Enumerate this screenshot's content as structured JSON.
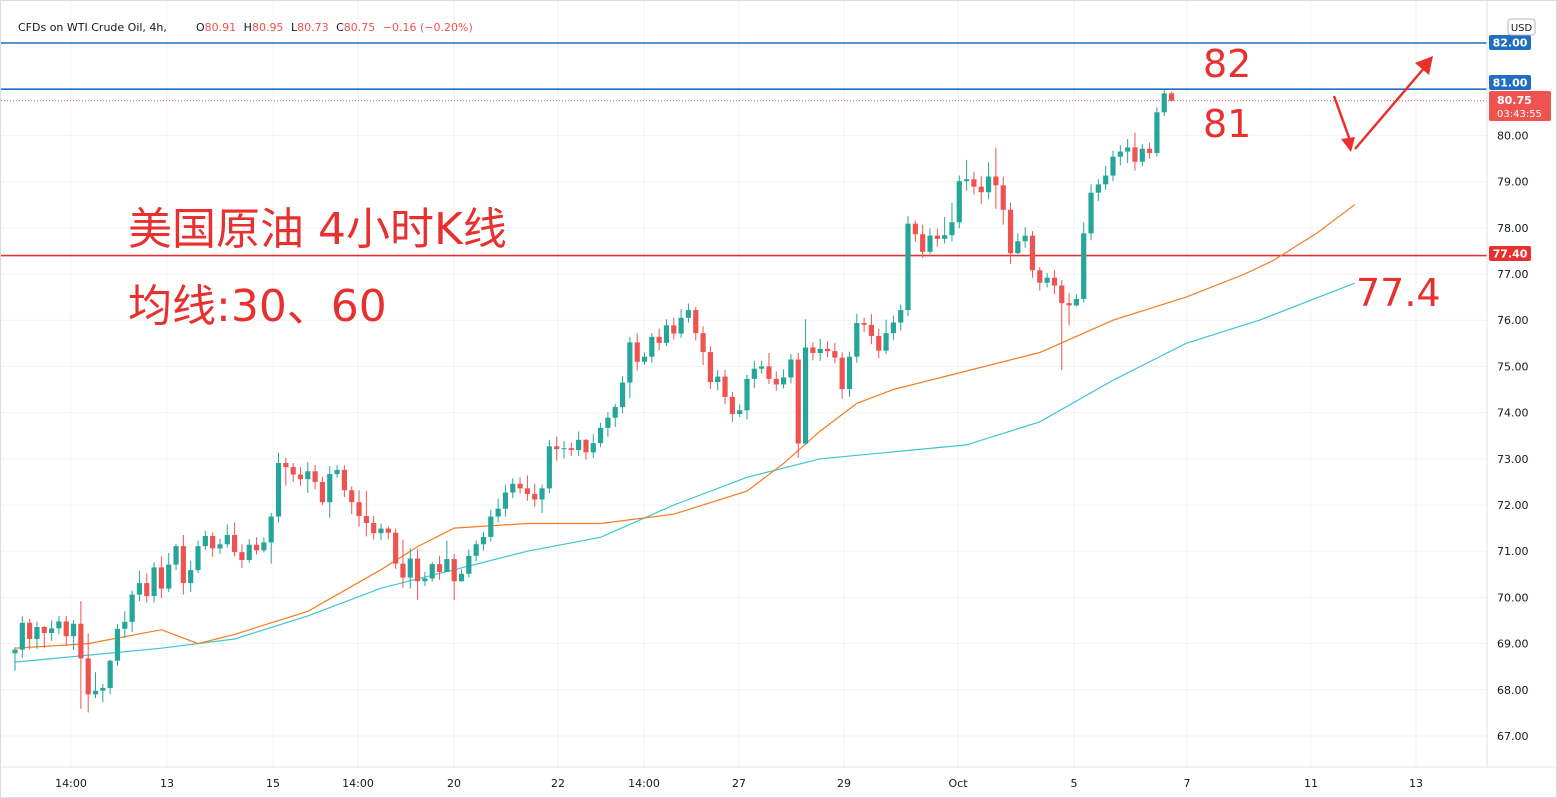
{
  "header": {
    "symbol": "CFDs on WTI Crude Oil, 4h,",
    "o_label": "O",
    "o_value": "80.91",
    "h_label": "H",
    "h_value": "80.95",
    "l_label": "L",
    "l_value": "80.73",
    "c_label": "C",
    "c_value": "80.75",
    "change": "−0.16 (−0.20%)"
  },
  "currency": "USD",
  "annotations": {
    "title_line1": "美国原油 4小时K线",
    "title_line2": "均线:30、60",
    "level_82": "82",
    "level_81": "81",
    "level_774": "77.4"
  },
  "price_tags": {
    "top": "82.00",
    "mid": "81.00",
    "current": "80.75",
    "countdown": "03:43:55",
    "support": "77.40"
  },
  "colors": {
    "up": "#26a69a",
    "down": "#ef5350",
    "ma30": "#f57c20",
    "ma60": "#3fc4d8",
    "resistance": "#1e6fc2",
    "support": "#e8302e",
    "annotation": "#e8302e"
  },
  "chart_data": {
    "type": "candlestick",
    "timeframe": "4h",
    "ylim": [
      66.3,
      82.6
    ],
    "y_ticks": [
      "67.00",
      "68.00",
      "69.00",
      "70.00",
      "71.00",
      "72.00",
      "73.00",
      "74.00",
      "75.00",
      "76.00",
      "77.00",
      "78.00",
      "79.00",
      "80.00"
    ],
    "x_ticks": [
      "14:00",
      "13",
      "15",
      "14:00",
      "20",
      "22",
      "14:00",
      "27",
      "29",
      "Oct",
      "5",
      "7",
      "11",
      "13"
    ],
    "horizontal_lines": [
      {
        "price": 82.0,
        "color": "#1e6fc2"
      },
      {
        "price": 81.0,
        "color": "#1e6fc2"
      },
      {
        "price": 77.4,
        "color": "#e8302e"
      }
    ],
    "moving_averages": [
      {
        "period": 30,
        "points": [
          [
            0,
            68.9
          ],
          [
            10,
            69.0
          ],
          [
            20,
            69.3
          ],
          [
            25,
            69.0
          ],
          [
            30,
            69.2
          ],
          [
            40,
            69.7
          ],
          [
            50,
            70.6
          ],
          [
            55,
            71.1
          ],
          [
            60,
            71.5
          ],
          [
            70,
            71.6
          ],
          [
            80,
            71.6
          ],
          [
            90,
            71.8
          ],
          [
            100,
            72.3
          ],
          [
            105,
            72.9
          ],
          [
            110,
            73.6
          ],
          [
            115,
            74.2
          ],
          [
            120,
            74.5
          ],
          [
            130,
            74.9
          ],
          [
            140,
            75.3
          ],
          [
            150,
            76.0
          ],
          [
            160,
            76.5
          ],
          [
            168,
            77.0
          ],
          [
            172,
            77.3
          ],
          [
            178,
            77.9
          ],
          [
            183,
            78.5
          ]
        ]
      },
      {
        "period": 60,
        "points": [
          [
            0,
            68.6
          ],
          [
            20,
            68.9
          ],
          [
            30,
            69.1
          ],
          [
            40,
            69.6
          ],
          [
            50,
            70.2
          ],
          [
            60,
            70.6
          ],
          [
            70,
            71.0
          ],
          [
            80,
            71.3
          ],
          [
            90,
            72.0
          ],
          [
            100,
            72.6
          ],
          [
            110,
            73.0
          ],
          [
            130,
            73.3
          ],
          [
            140,
            73.8
          ],
          [
            150,
            74.7
          ],
          [
            160,
            75.5
          ],
          [
            170,
            76.0
          ],
          [
            183,
            76.8
          ]
        ]
      }
    ],
    "candles": [
      [
        68.79,
        68.87,
        68.41,
        68.92
      ],
      [
        68.87,
        69.45,
        68.69,
        69.59
      ],
      [
        69.45,
        69.1,
        68.87,
        69.53
      ],
      [
        69.1,
        69.36,
        68.89,
        69.48
      ],
      [
        69.36,
        69.23,
        68.9,
        69.38
      ],
      [
        69.23,
        69.33,
        69.06,
        69.5
      ],
      [
        69.33,
        69.48,
        69.2,
        69.6
      ],
      [
        69.48,
        69.16,
        68.95,
        69.6
      ],
      [
        69.16,
        69.43,
        68.86,
        69.51
      ],
      [
        69.43,
        68.68,
        67.59,
        69.92
      ],
      [
        68.68,
        67.9,
        67.51,
        69.22
      ],
      [
        67.9,
        67.98,
        67.82,
        68.38
      ],
      [
        67.98,
        68.04,
        67.73,
        68.13
      ],
      [
        68.04,
        68.63,
        67.9,
        68.65
      ],
      [
        68.63,
        69.32,
        68.52,
        69.42
      ],
      [
        69.32,
        69.47,
        69.12,
        69.7
      ],
      [
        69.47,
        70.06,
        69.25,
        70.15
      ],
      [
        70.06,
        70.31,
        69.92,
        70.58
      ],
      [
        70.31,
        70.03,
        69.89,
        70.52
      ],
      [
        70.03,
        70.65,
        69.89,
        70.76
      ],
      [
        70.65,
        70.19,
        69.98,
        70.89
      ],
      [
        70.19,
        70.71,
        70.12,
        70.96
      ],
      [
        70.71,
        71.11,
        70.59,
        71.16
      ],
      [
        71.11,
        70.31,
        70.06,
        71.35
      ],
      [
        70.31,
        70.59,
        70.12,
        70.8
      ],
      [
        70.59,
        71.11,
        70.53,
        71.23
      ],
      [
        71.11,
        71.33,
        71.03,
        71.44
      ],
      [
        71.33,
        71.06,
        70.88,
        71.41
      ],
      [
        71.06,
        71.15,
        70.94,
        71.27
      ],
      [
        71.15,
        71.35,
        71.08,
        71.58
      ],
      [
        71.35,
        70.98,
        70.89,
        71.62
      ],
      [
        70.98,
        70.81,
        70.64,
        71.15
      ],
      [
        70.81,
        71.14,
        70.75,
        71.26
      ],
      [
        71.14,
        71.02,
        70.93,
        71.3
      ],
      [
        71.02,
        71.19,
        70.97,
        71.3
      ],
      [
        71.19,
        71.75,
        70.73,
        71.83
      ],
      [
        71.75,
        72.91,
        71.62,
        73.13
      ],
      [
        72.91,
        72.82,
        72.42,
        73.02
      ],
      [
        72.82,
        72.66,
        72.5,
        72.91
      ],
      [
        72.66,
        72.56,
        72.42,
        72.82
      ],
      [
        72.56,
        72.73,
        72.26,
        72.93
      ],
      [
        72.73,
        72.5,
        72.34,
        72.87
      ],
      [
        72.5,
        72.06,
        72.0,
        72.61
      ],
      [
        72.06,
        72.67,
        71.72,
        72.84
      ],
      [
        72.67,
        72.76,
        72.59,
        72.86
      ],
      [
        72.76,
        72.32,
        72.17,
        72.86
      ],
      [
        72.32,
        72.06,
        71.8,
        72.4
      ],
      [
        72.06,
        71.76,
        71.53,
        72.32
      ],
      [
        71.76,
        71.61,
        71.32,
        72.3
      ],
      [
        71.61,
        71.39,
        71.25,
        71.76
      ],
      [
        71.39,
        71.49,
        71.24,
        71.6
      ],
      [
        71.49,
        71.4,
        71.26,
        71.54
      ],
      [
        71.4,
        70.73,
        70.62,
        71.49
      ],
      [
        70.73,
        70.43,
        70.21,
        71.25
      ],
      [
        70.43,
        70.84,
        70.19,
        71.06
      ],
      [
        70.84,
        70.35,
        69.95,
        71.05
      ],
      [
        70.35,
        70.41,
        70.25,
        70.55
      ],
      [
        70.41,
        70.72,
        70.34,
        70.77
      ],
      [
        70.72,
        70.55,
        70.38,
        70.9
      ],
      [
        70.55,
        70.83,
        70.55,
        71.23
      ],
      [
        70.83,
        70.35,
        69.94,
        70.94
      ],
      [
        70.35,
        70.51,
        70.34,
        70.61
      ],
      [
        70.51,
        70.9,
        70.43,
        71.04
      ],
      [
        70.9,
        71.15,
        70.78,
        71.23
      ],
      [
        71.15,
        71.31,
        71.01,
        71.42
      ],
      [
        71.31,
        71.75,
        71.21,
        71.9
      ],
      [
        71.75,
        71.92,
        71.62,
        72.14
      ],
      [
        71.92,
        72.27,
        71.75,
        72.44
      ],
      [
        72.27,
        72.46,
        72.15,
        72.58
      ],
      [
        72.46,
        72.36,
        72.25,
        72.6
      ],
      [
        72.36,
        72.24,
        72.09,
        72.64
      ],
      [
        72.24,
        72.12,
        71.96,
        72.46
      ],
      [
        72.12,
        72.36,
        71.83,
        72.44
      ],
      [
        72.36,
        73.27,
        72.25,
        73.41
      ],
      [
        73.27,
        73.21,
        72.96,
        73.48
      ],
      [
        73.21,
        73.23,
        73.01,
        73.38
      ],
      [
        73.23,
        73.19,
        73.06,
        73.35
      ],
      [
        73.19,
        73.41,
        73.06,
        73.59
      ],
      [
        73.41,
        73.14,
        72.98,
        73.43
      ],
      [
        73.14,
        73.34,
        73.02,
        73.53
      ],
      [
        73.34,
        73.67,
        73.25,
        73.78
      ],
      [
        73.67,
        73.89,
        73.48,
        74.01
      ],
      [
        73.89,
        74.12,
        73.69,
        74.19
      ],
      [
        74.12,
        74.65,
        73.98,
        74.79
      ],
      [
        74.65,
        75.52,
        74.31,
        75.64
      ],
      [
        75.52,
        75.1,
        74.91,
        75.71
      ],
      [
        75.1,
        75.21,
        75.04,
        75.3
      ],
      [
        75.21,
        75.64,
        75.08,
        75.72
      ],
      [
        75.64,
        75.51,
        75.35,
        75.82
      ],
      [
        75.51,
        75.89,
        75.44,
        76.02
      ],
      [
        75.89,
        75.71,
        75.58,
        76.06
      ],
      [
        75.71,
        76.05,
        75.62,
        76.24
      ],
      [
        76.05,
        76.22,
        75.95,
        76.36
      ],
      [
        76.22,
        75.72,
        75.56,
        76.29
      ],
      [
        75.72,
        75.31,
        75.03,
        75.87
      ],
      [
        75.31,
        74.66,
        74.51,
        75.44
      ],
      [
        74.66,
        74.78,
        74.48,
        74.92
      ],
      [
        74.78,
        74.34,
        74.18,
        74.92
      ],
      [
        74.34,
        73.97,
        73.79,
        74.45
      ],
      [
        73.97,
        74.05,
        73.9,
        74.18
      ],
      [
        74.05,
        74.73,
        73.85,
        74.82
      ],
      [
        74.73,
        74.95,
        74.53,
        75.12
      ],
      [
        74.95,
        75.0,
        74.84,
        75.12
      ],
      [
        75.0,
        74.73,
        74.62,
        75.29
      ],
      [
        74.73,
        74.61,
        74.47,
        74.89
      ],
      [
        74.61,
        74.76,
        74.52,
        74.94
      ],
      [
        74.76,
        75.15,
        74.63,
        75.27
      ],
      [
        75.15,
        73.33,
        73.02,
        75.29
      ],
      [
        73.33,
        75.41,
        73.3,
        76.02
      ],
      [
        75.41,
        75.29,
        75.13,
        75.52
      ],
      [
        75.29,
        75.38,
        75.12,
        75.6
      ],
      [
        75.38,
        75.33,
        75.2,
        75.54
      ],
      [
        75.33,
        75.19,
        75.07,
        75.51
      ],
      [
        75.19,
        74.51,
        74.3,
        75.3
      ],
      [
        74.51,
        75.21,
        74.34,
        75.32
      ],
      [
        75.21,
        75.94,
        75.08,
        76.14
      ],
      [
        75.94,
        75.9,
        75.74,
        76.06
      ],
      [
        75.9,
        75.66,
        75.48,
        76.13
      ],
      [
        75.66,
        75.34,
        75.18,
        75.81
      ],
      [
        75.34,
        75.72,
        75.27,
        76.01
      ],
      [
        75.72,
        75.95,
        75.57,
        76.1
      ],
      [
        75.95,
        76.22,
        75.77,
        76.34
      ],
      [
        76.22,
        78.09,
        76.09,
        78.25
      ],
      [
        78.09,
        77.86,
        77.7,
        78.16
      ],
      [
        77.86,
        77.48,
        77.35,
        78.07
      ],
      [
        77.48,
        77.83,
        77.43,
        77.99
      ],
      [
        77.83,
        77.76,
        77.59,
        77.98
      ],
      [
        77.76,
        77.84,
        77.66,
        78.23
      ],
      [
        77.84,
        78.12,
        77.71,
        78.54
      ],
      [
        78.12,
        79.01,
        77.99,
        79.13
      ],
      [
        79.01,
        79.05,
        78.8,
        79.47
      ],
      [
        79.05,
        78.89,
        78.72,
        79.21
      ],
      [
        78.89,
        78.77,
        78.52,
        79.12
      ],
      [
        78.77,
        79.11,
        78.62,
        79.42
      ],
      [
        79.11,
        78.92,
        78.41,
        79.74
      ],
      [
        78.92,
        78.39,
        78.07,
        79.11
      ],
      [
        78.39,
        77.45,
        77.22,
        78.54
      ],
      [
        77.45,
        77.71,
        77.43,
        77.88
      ],
      [
        77.71,
        77.83,
        77.57,
        78.01
      ],
      [
        77.83,
        77.08,
        76.92,
        77.93
      ],
      [
        77.08,
        76.81,
        76.64,
        77.15
      ],
      [
        76.81,
        76.92,
        76.71,
        77.02
      ],
      [
        76.92,
        76.75,
        76.56,
        77.08
      ],
      [
        76.75,
        76.37,
        74.92,
        76.87
      ],
      [
        76.37,
        76.32,
        75.89,
        76.59
      ],
      [
        76.32,
        76.46,
        76.3,
        76.56
      ],
      [
        76.46,
        77.88,
        76.38,
        78.12
      ],
      [
        77.88,
        78.76,
        77.73,
        78.94
      ],
      [
        78.76,
        78.94,
        78.58,
        79.05
      ],
      [
        78.94,
        79.13,
        78.82,
        79.34
      ],
      [
        79.13,
        79.54,
        79.01,
        79.67
      ],
      [
        79.54,
        79.65,
        79.35,
        79.79
      ],
      [
        79.65,
        79.74,
        79.4,
        79.92
      ],
      [
        79.74,
        79.43,
        79.24,
        80.06
      ],
      [
        79.43,
        79.71,
        79.33,
        79.81
      ],
      [
        79.71,
        79.62,
        79.5,
        79.84
      ],
      [
        79.62,
        80.5,
        79.54,
        80.61
      ],
      [
        80.5,
        80.91,
        80.42,
        80.98
      ],
      [
        80.91,
        80.75,
        80.73,
        80.95
      ]
    ]
  }
}
